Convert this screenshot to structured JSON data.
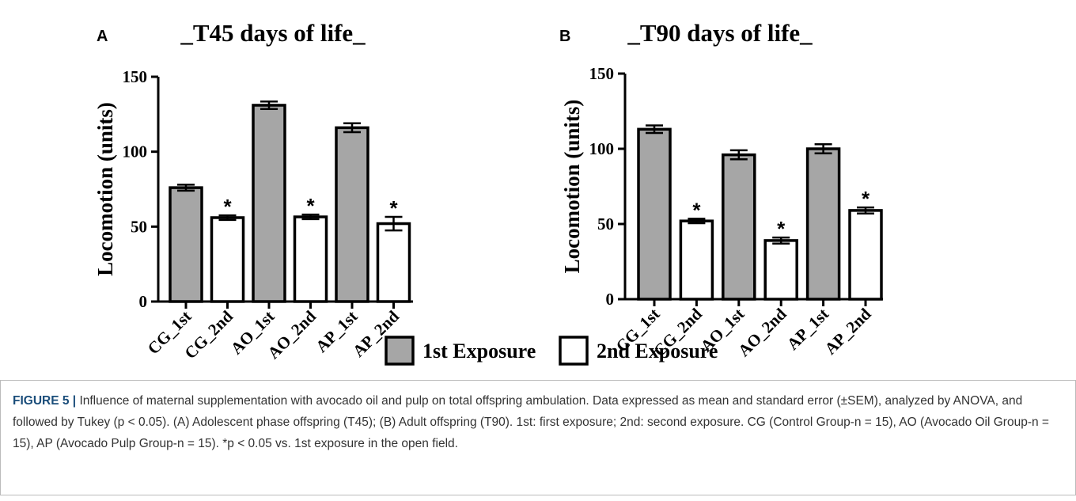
{
  "chart_data": [
    {
      "type": "bar",
      "panel": "A",
      "title": "_T45 days of life_",
      "y_label": "Locomotion (units)",
      "categories": [
        "CG_1st",
        "CG_2nd",
        "AO_1st",
        "AO_2nd",
        "AP_1st",
        "AP_2nd"
      ],
      "series": [
        {
          "values": [
            76,
            null,
            131,
            null,
            116,
            null
          ],
          "errors": [
            2,
            null,
            2.5,
            null,
            3,
            null
          ]
        },
        {
          "values": [
            null,
            56,
            null,
            56.5,
            null,
            52
          ],
          "errors": [
            null,
            1.5,
            null,
            1.5,
            null,
            4.5
          ],
          "annotations": [
            null,
            "*",
            null,
            "*",
            null,
            "*"
          ]
        }
      ],
      "ylim": [
        0,
        150
      ],
      "yticks": [
        0,
        50,
        100,
        150
      ]
    },
    {
      "type": "bar",
      "panel": "B",
      "title": "_T90 days of life_",
      "y_label": "Locomotion (units)",
      "categories": [
        "CG_1st",
        "CG_2nd",
        "AO_1st",
        "AO_2nd",
        "AP_1st",
        "AP_2nd"
      ],
      "series": [
        {
          "values": [
            113,
            null,
            96,
            null,
            100,
            null
          ],
          "errors": [
            2.5,
            null,
            3,
            null,
            3,
            null
          ]
        },
        {
          "values": [
            null,
            52,
            null,
            39,
            null,
            59
          ],
          "errors": [
            null,
            1.5,
            null,
            2,
            null,
            2
          ],
          "annotations": [
            null,
            "*",
            null,
            "*",
            null,
            "*"
          ]
        }
      ],
      "ylim": [
        0,
        150
      ],
      "yticks": [
        0,
        50,
        100,
        150
      ]
    }
  ],
  "legend": [
    {
      "name": "1st Exposure",
      "color": "#a6a6a6"
    },
    {
      "name": "2nd Exposure",
      "color": "#ffffff"
    }
  ],
  "caption": {
    "label": "FIGURE 5 |",
    "text": "Influence of maternal supplementation with avocado oil and pulp on total offspring ambulation. Data expressed as mean and standard error (±SEM), analyzed by ANOVA, and followed by Tukey (p < 0.05). (A) Adolescent phase offspring (T45); (B) Adult offspring (T90). 1st: first exposure; 2nd: second exposure. CG (Control Group-n = 15), AO (Avocado Oil Group-n = 15), AP (Avocado Pulp Group-n = 15). *p < 0.05 vs. 1st exposure in the open field."
  }
}
